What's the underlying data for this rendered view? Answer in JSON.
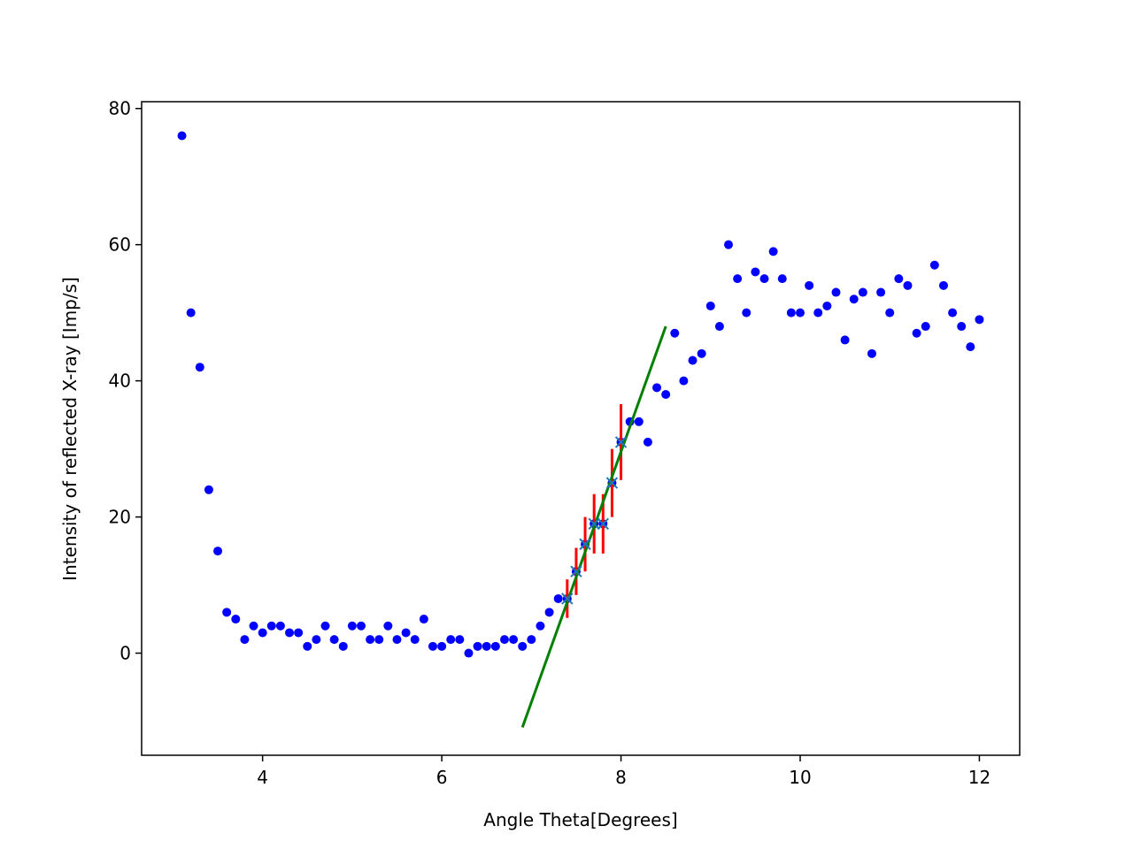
{
  "chart_data": {
    "type": "scatter",
    "title": "",
    "xlabel": "Angle Theta[Degrees]",
    "ylabel": "Intensity of reflected X-ray [Imp/s]",
    "xlim": [
      2.65,
      12.45
    ],
    "ylim": [
      -15,
      81
    ],
    "xticks": [
      4,
      6,
      8,
      10,
      12
    ],
    "yticks": [
      0,
      20,
      40,
      60,
      80
    ],
    "grid": false,
    "legend": "none",
    "colors": {
      "measured": "#0000ff",
      "fit_points": "#1f77b4",
      "error_bars": "#ff0000",
      "fit_line": "#008000"
    },
    "series": [
      {
        "role": "measured",
        "marker": "dot",
        "x": [
          3.1,
          3.2,
          3.3,
          3.4,
          3.5,
          3.6,
          3.7,
          3.8,
          3.9,
          4.0,
          4.1,
          4.2,
          4.3,
          4.4,
          4.5,
          4.6,
          4.7,
          4.8,
          4.9,
          5.0,
          5.1,
          5.2,
          5.3,
          5.4,
          5.5,
          5.6,
          5.7,
          5.8,
          5.9,
          6.0,
          6.1,
          6.2,
          6.3,
          6.4,
          6.5,
          6.6,
          6.7,
          6.8,
          6.9,
          7.0,
          7.1,
          7.2,
          7.3,
          7.4,
          7.5,
          7.6,
          7.7,
          7.8,
          7.9,
          8.0,
          8.1,
          8.2,
          8.3,
          8.4,
          8.5,
          8.6,
          8.7,
          8.8,
          8.9,
          9.0,
          9.1,
          9.2,
          9.3,
          9.4,
          9.5,
          9.6,
          9.7,
          9.8,
          9.9,
          10.0,
          10.1,
          10.2,
          10.3,
          10.4,
          10.5,
          10.6,
          10.7,
          10.8,
          10.9,
          11.0,
          11.1,
          11.2,
          11.3,
          11.4,
          11.5,
          11.6,
          11.7,
          11.8,
          11.9,
          12.0
        ],
        "y": [
          76,
          50,
          42,
          24,
          15,
          6,
          5,
          2,
          4,
          3,
          4,
          4,
          3,
          3,
          1,
          2,
          4,
          2,
          1,
          4,
          4,
          2,
          2,
          4,
          2,
          3,
          2,
          5,
          1,
          1,
          2,
          2,
          0,
          1,
          1,
          1,
          2,
          2,
          1,
          2,
          4,
          6,
          8,
          8,
          12,
          16,
          19,
          19,
          25,
          31,
          34,
          34,
          31,
          39,
          38,
          47,
          40,
          43,
          44,
          51,
          48,
          60,
          55,
          50,
          56,
          55,
          59,
          55,
          50,
          50,
          54,
          50,
          51,
          53,
          46,
          52,
          53,
          44,
          53,
          50,
          55,
          54,
          47,
          48,
          57,
          54,
          50,
          48,
          45,
          49
        ]
      },
      {
        "role": "fit_points",
        "marker": "x",
        "x": [
          7.4,
          7.5,
          7.6,
          7.7,
          7.8,
          7.9,
          8.0
        ],
        "y": [
          8,
          12,
          16,
          19,
          19,
          25,
          31
        ],
        "yerr": [
          2.83,
          3.46,
          4.0,
          4.36,
          4.36,
          5.0,
          5.57
        ]
      },
      {
        "role": "fit_line",
        "marker": "line",
        "x": [
          6.9,
          8.5
        ],
        "y": [
          -10.9,
          48.0
        ]
      }
    ]
  }
}
